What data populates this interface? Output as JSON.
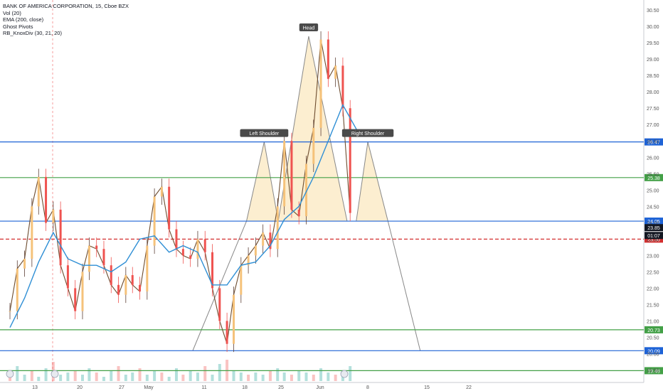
{
  "legend": {
    "symbol": "BANK OF AMERICA CORPORATION, 15, Cboe BZX",
    "indicators": [
      "Vol (20)",
      "EMA (200, close)",
      "Ghost Pivots",
      "RB_KnoxDiv (30, 21, 20)"
    ]
  },
  "colors": {
    "up": "#26a69a",
    "down": "#ef5350",
    "ema": "#2f8fd5",
    "support": "#1e63d6",
    "target": "#43a047",
    "current": "#d32f2f",
    "pattern_fill": "#fbe8c0",
    "pattern_line": "#888888",
    "label_bg": "#4a4a4a"
  },
  "chart_data": {
    "type": "line",
    "title": "BANK OF AMERICA CORPORATION, 15, Cboe BZX",
    "xlabel": "",
    "ylabel": "",
    "ylim": [
      19.25,
      30.72
    ],
    "y_ticks": [
      19.5,
      20.0,
      20.5,
      21.0,
      21.5,
      22.0,
      22.5,
      23.0,
      23.5,
      24.0,
      24.5,
      25.0,
      25.5,
      26.0,
      26.5,
      27.0,
      27.5,
      28.0,
      28.5,
      29.0,
      29.5,
      30.0,
      30.5
    ],
    "x_ticks": [
      "13",
      "20",
      "27",
      "May",
      "11",
      "18",
      "25",
      "Jun",
      "8",
      "15",
      "22"
    ],
    "grid": false,
    "series": [
      {
        "name": "Price",
        "x": [
          0,
          1.2,
          2.4,
          3.6,
          4.7,
          5.9,
          7.1,
          8.3,
          9.5,
          10.7,
          11.9,
          13.0,
          14.2,
          15.4,
          16.6,
          17.8,
          19.0,
          20.1,
          21.3,
          22.5,
          23.7,
          24.9,
          26.1,
          27.3,
          28.4,
          29.6,
          30.8,
          32.0,
          33.2,
          34.4,
          35.6,
          36.7,
          37.9,
          39.1,
          40.3,
          41.5,
          42.7,
          43.9,
          45.0,
          46.2,
          47.4,
          48.6,
          49.8,
          51.0,
          52.2,
          53.4,
          54.6,
          55.8
        ],
        "values": [
          21.3,
          22.6,
          22.9,
          24.5,
          25.4,
          24.0,
          24.4,
          22.7,
          22.0,
          21.3,
          22.5,
          23.3,
          23.2,
          22.7,
          22.1,
          21.8,
          22.4,
          22.1,
          21.9,
          23.3,
          24.8,
          25.1,
          23.8,
          23.2,
          23.0,
          22.9,
          23.5,
          23.1,
          22.0,
          21.0,
          20.3,
          21.8,
          22.7,
          23.0,
          23.3,
          23.7,
          23.2,
          24.5,
          26.5,
          24.4,
          24.2,
          25.8,
          26.9,
          29.6,
          28.4,
          28.8,
          27.5,
          24.3
        ]
      },
      {
        "name": "EMA (200, close)",
        "x": [
          0,
          2.4,
          4.7,
          7.1,
          9.5,
          11.9,
          14.2,
          16.6,
          19.0,
          21.3,
          23.7,
          26.1,
          28.4,
          30.8,
          33.2,
          35.6,
          37.9,
          40.3,
          42.7,
          45.0,
          47.4,
          49.8,
          52.2,
          54.6,
          57.0
        ],
        "values": [
          20.8,
          21.7,
          22.8,
          23.7,
          22.9,
          22.7,
          22.7,
          22.5,
          22.8,
          23.5,
          23.6,
          23.1,
          23.3,
          23.1,
          22.1,
          22.1,
          22.7,
          22.8,
          23.3,
          24.1,
          24.5,
          25.4,
          26.5,
          27.6,
          26.8
        ]
      }
    ],
    "volume": {
      "name": "Vol (20)",
      "values": [
        0.4,
        0.7,
        0.3,
        0.5,
        0.2,
        0.6,
        0.9,
        0.3,
        0.4,
        0.5,
        0.3,
        0.6,
        0.4,
        0.2,
        0.5,
        0.7,
        0.3,
        0.4,
        0.6,
        0.3,
        0.5,
        0.4,
        0.2,
        0.6,
        0.3,
        0.5,
        0.4,
        0.7,
        0.3,
        0.8,
        1.0,
        0.5,
        0.4,
        0.3,
        0.4,
        0.3,
        0.5,
        0.6,
        0.4,
        0.3,
        0.5,
        0.4,
        0.3,
        0.6,
        0.4,
        0.3,
        0.5,
        0.7
      ]
    },
    "head_and_shoulders": {
      "points": [
        {
          "label": "",
          "x": 38.8,
          "y": 24.05
        },
        {
          "label": "Left Shoulder",
          "x": 41.7,
          "y": 26.47
        },
        {
          "label": "",
          "x": 44.0,
          "y": 24.05
        },
        {
          "label": "Head",
          "x": 49.0,
          "y": 29.7
        },
        {
          "label": "",
          "x": 55.3,
          "y": 24.05
        },
        {
          "label": "",
          "x": 56.8,
          "y": 24.05
        },
        {
          "label": "Right Shoulder",
          "x": 58.7,
          "y": 26.47
        },
        {
          "label": "",
          "x": 62.0,
          "y": 24.05
        }
      ],
      "projection": [
        {
          "x": 62.0,
          "y": 24.05
        },
        {
          "x": 67.3,
          "y": 20.09
        }
      ]
    },
    "levels": [
      {
        "label": "26.47",
        "value": 26.47,
        "kind": "support"
      },
      {
        "label": "25.38",
        "value": 25.38,
        "kind": "target"
      },
      {
        "label": "24.05",
        "value": 24.05,
        "kind": "support"
      },
      {
        "label": "23.50",
        "value": 23.5,
        "kind": "current"
      },
      {
        "label": "20.73",
        "value": 20.73,
        "kind": "target"
      },
      {
        "label": "20.09",
        "value": 20.09,
        "kind": "support"
      },
      {
        "label": "19.48",
        "value": 19.48,
        "kind": "target"
      }
    ],
    "last_price": {
      "label": "23.85",
      "value": 23.85,
      "countdown": "01:07"
    }
  }
}
